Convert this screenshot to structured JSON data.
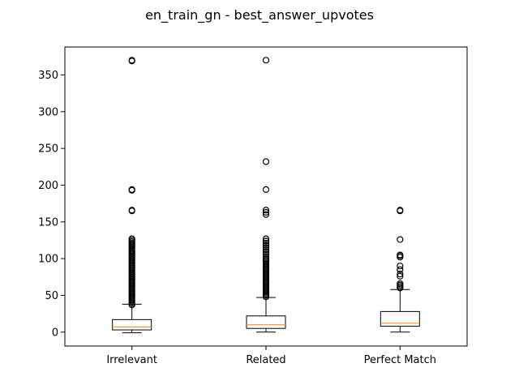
{
  "chart_data": {
    "type": "boxplot",
    "title": "en_train_gn - best_answer_upvotes",
    "xlabel": "",
    "ylabel": "",
    "categories": [
      "Irrelevant",
      "Related",
      "Perfect Match"
    ],
    "ylim": [
      -19,
      388
    ],
    "yticks": [
      0,
      50,
      100,
      150,
      200,
      250,
      300,
      350
    ],
    "grid": false,
    "series": [
      {
        "category": "Irrelevant",
        "whisker_low": -1,
        "q1": 3,
        "median": 7,
        "q3": 17,
        "whisker_high": 38,
        "outliers": [
          37,
          39,
          41,
          43,
          45,
          47,
          49,
          51,
          53,
          55,
          57,
          59,
          61,
          63,
          65,
          67,
          69,
          71,
          73,
          75,
          77,
          79,
          81,
          83,
          85,
          87,
          89,
          91,
          93,
          95,
          97,
          99,
          101,
          103,
          105,
          107,
          109,
          111,
          113,
          115,
          117,
          119,
          121,
          123,
          125,
          127,
          165,
          166,
          193,
          194,
          369,
          370
        ]
      },
      {
        "category": "Related",
        "whisker_low": 0,
        "q1": 5,
        "median": 10,
        "q3": 22,
        "whisker_high": 47,
        "outliers": [
          48,
          50,
          52,
          54,
          56,
          58,
          60,
          62,
          64,
          66,
          68,
          70,
          72,
          74,
          76,
          78,
          80,
          82,
          84,
          86,
          88,
          90,
          92,
          94,
          96,
          98,
          100,
          103,
          106,
          109,
          112,
          115,
          118,
          121,
          124,
          127,
          160,
          163,
          166,
          194,
          232,
          370
        ]
      },
      {
        "category": "Perfect Match",
        "whisker_low": 0,
        "q1": 8,
        "median": 12,
        "q3": 28,
        "whisker_high": 58,
        "outliers": [
          60,
          62,
          64,
          66,
          76,
          79,
          85,
          90,
          102,
          104,
          105,
          126,
          165,
          166
        ]
      }
    ],
    "colors": {
      "box": "#000000",
      "median": "#ff7f0e",
      "whisker": "#000000",
      "flier": "#000000"
    }
  }
}
